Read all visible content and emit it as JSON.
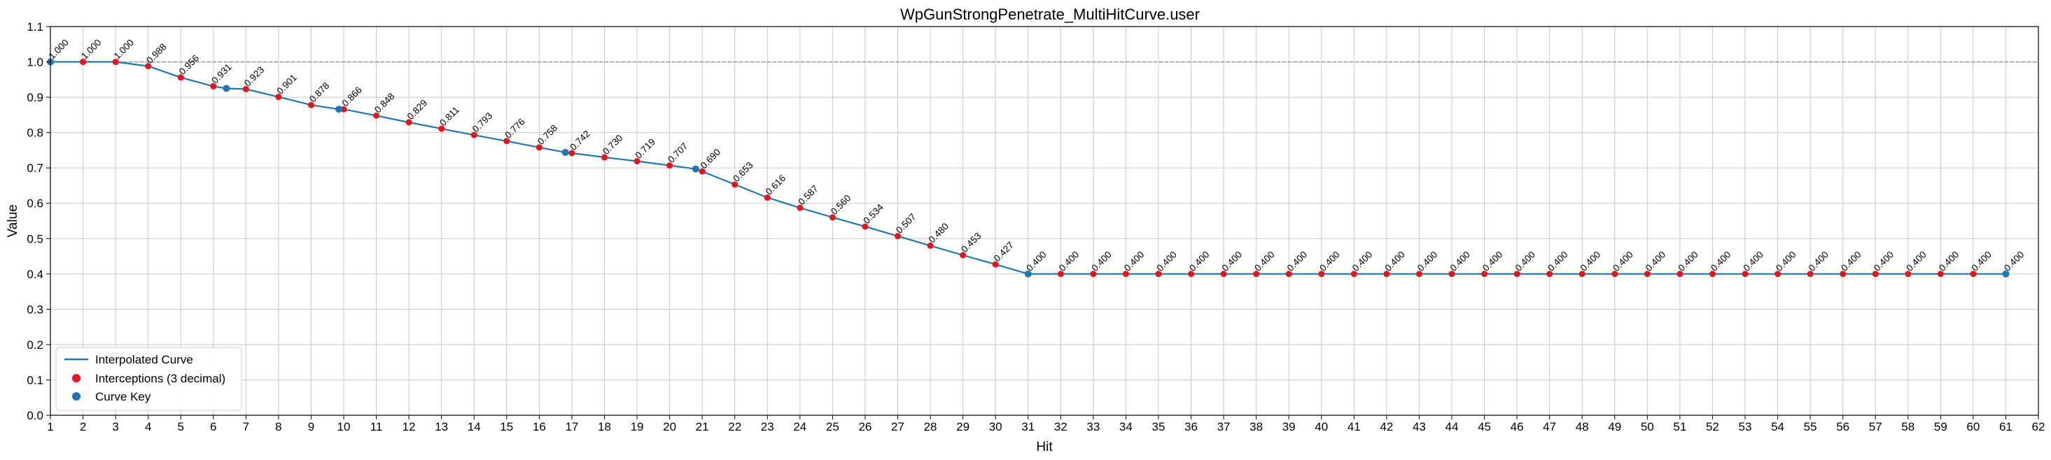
{
  "chart_data": {
    "type": "line",
    "title": "WpGunStrongPenetrate_MultiHitCurve.user",
    "xlabel": "Hit",
    "ylabel": "Value",
    "xlim": [
      1,
      62
    ],
    "ylim": [
      0.0,
      1.1
    ],
    "xticks": [
      1,
      2,
      3,
      4,
      5,
      6,
      7,
      8,
      9,
      10,
      11,
      12,
      13,
      14,
      15,
      16,
      17,
      18,
      19,
      20,
      21,
      22,
      23,
      24,
      25,
      26,
      27,
      28,
      29,
      30,
      31,
      32,
      33,
      34,
      35,
      36,
      37,
      38,
      39,
      40,
      41,
      42,
      43,
      44,
      45,
      46,
      47,
      48,
      49,
      50,
      51,
      52,
      53,
      54,
      55,
      56,
      57,
      58,
      59,
      60,
      61,
      62
    ],
    "yticks": [
      0.0,
      0.1,
      0.2,
      0.3,
      0.4,
      0.5,
      0.6,
      0.7,
      0.8,
      0.9,
      1.0,
      1.1
    ],
    "grid": true,
    "reference_line": {
      "y": 1.0,
      "style": "dashed"
    },
    "legend_position": "lower-left",
    "colors": {
      "curve": "#1f77b4",
      "interceptions": "#e8141a",
      "keys": "#1f77b4",
      "reference": "#888888",
      "grid": "#c8c8c8"
    },
    "series": [
      {
        "name": "Interpolated Curve",
        "kind": "line",
        "x": [
          1,
          2,
          3,
          4,
          5,
          6,
          6.4,
          7,
          8,
          9,
          9.85,
          10,
          11,
          12,
          13,
          14,
          15,
          16,
          16.8,
          17,
          18,
          19,
          20,
          20.8,
          21,
          22,
          23,
          24,
          25,
          26,
          27,
          28,
          29,
          30,
          31,
          32,
          33,
          34,
          35,
          36,
          37,
          38,
          39,
          40,
          41,
          42,
          43,
          44,
          45,
          46,
          47,
          48,
          49,
          50,
          51,
          52,
          53,
          54,
          55,
          56,
          57,
          58,
          59,
          60,
          61
        ],
        "y": [
          1.0,
          1.0,
          1.0,
          0.988,
          0.956,
          0.931,
          0.925,
          0.923,
          0.901,
          0.878,
          0.866,
          0.866,
          0.848,
          0.829,
          0.811,
          0.793,
          0.776,
          0.758,
          0.744,
          0.742,
          0.73,
          0.719,
          0.707,
          0.697,
          0.69,
          0.653,
          0.616,
          0.587,
          0.56,
          0.534,
          0.507,
          0.48,
          0.453,
          0.427,
          0.4,
          0.4,
          0.4,
          0.4,
          0.4,
          0.4,
          0.4,
          0.4,
          0.4,
          0.4,
          0.4,
          0.4,
          0.4,
          0.4,
          0.4,
          0.4,
          0.4,
          0.4,
          0.4,
          0.4,
          0.4,
          0.4,
          0.4,
          0.4,
          0.4,
          0.4,
          0.4,
          0.4,
          0.4,
          0.4,
          0.4
        ]
      },
      {
        "name": "Interceptions (3 decimal)",
        "kind": "scatter",
        "x": [
          2,
          3,
          4,
          5,
          6,
          7,
          8,
          9,
          10,
          11,
          12,
          13,
          14,
          15,
          16,
          17,
          18,
          19,
          20,
          21,
          22,
          23,
          24,
          25,
          26,
          27,
          28,
          29,
          30,
          32,
          33,
          34,
          35,
          36,
          37,
          38,
          39,
          40,
          41,
          42,
          43,
          44,
          45,
          46,
          47,
          48,
          49,
          50,
          51,
          52,
          53,
          54,
          55,
          56,
          57,
          58,
          59,
          60
        ],
        "y": [
          1.0,
          1.0,
          0.988,
          0.956,
          0.931,
          0.923,
          0.901,
          0.878,
          0.866,
          0.848,
          0.829,
          0.811,
          0.793,
          0.776,
          0.758,
          0.742,
          0.73,
          0.719,
          0.707,
          0.69,
          0.653,
          0.616,
          0.587,
          0.56,
          0.534,
          0.507,
          0.48,
          0.453,
          0.427,
          0.4,
          0.4,
          0.4,
          0.4,
          0.4,
          0.4,
          0.4,
          0.4,
          0.4,
          0.4,
          0.4,
          0.4,
          0.4,
          0.4,
          0.4,
          0.4,
          0.4,
          0.4,
          0.4,
          0.4,
          0.4,
          0.4,
          0.4,
          0.4,
          0.4,
          0.4,
          0.4,
          0.4,
          0.4
        ]
      },
      {
        "name": "Curve Key",
        "kind": "scatter",
        "x": [
          1,
          6.4,
          9.85,
          16.8,
          20.8,
          31,
          61
        ],
        "y": [
          1.0,
          0.925,
          0.866,
          0.744,
          0.697,
          0.4,
          0.4
        ]
      }
    ],
    "labels": [
      {
        "x": 1,
        "y": 1.0,
        "text": "1.000"
      },
      {
        "x": 2,
        "y": 1.0,
        "text": "1.000"
      },
      {
        "x": 3,
        "y": 1.0,
        "text": "1.000"
      },
      {
        "x": 4,
        "y": 0.988,
        "text": "0.988"
      },
      {
        "x": 5,
        "y": 0.956,
        "text": "0.956"
      },
      {
        "x": 6,
        "y": 0.931,
        "text": "0.931"
      },
      {
        "x": 7,
        "y": 0.923,
        "text": "0.923"
      },
      {
        "x": 8,
        "y": 0.901,
        "text": "0.901"
      },
      {
        "x": 9,
        "y": 0.878,
        "text": "0.878"
      },
      {
        "x": 10,
        "y": 0.866,
        "text": "0.866"
      },
      {
        "x": 11,
        "y": 0.848,
        "text": "0.848"
      },
      {
        "x": 12,
        "y": 0.829,
        "text": "0.829"
      },
      {
        "x": 13,
        "y": 0.811,
        "text": "0.811"
      },
      {
        "x": 14,
        "y": 0.793,
        "text": "0.793"
      },
      {
        "x": 15,
        "y": 0.776,
        "text": "0.776"
      },
      {
        "x": 16,
        "y": 0.758,
        "text": "0.758"
      },
      {
        "x": 17,
        "y": 0.742,
        "text": "0.742"
      },
      {
        "x": 18,
        "y": 0.73,
        "text": "0.730"
      },
      {
        "x": 19,
        "y": 0.719,
        "text": "0.719"
      },
      {
        "x": 20,
        "y": 0.707,
        "text": "0.707"
      },
      {
        "x": 21,
        "y": 0.69,
        "text": "0.690"
      },
      {
        "x": 22,
        "y": 0.653,
        "text": "0.653"
      },
      {
        "x": 23,
        "y": 0.616,
        "text": "0.616"
      },
      {
        "x": 24,
        "y": 0.587,
        "text": "0.587"
      },
      {
        "x": 25,
        "y": 0.56,
        "text": "0.560"
      },
      {
        "x": 26,
        "y": 0.534,
        "text": "0.534"
      },
      {
        "x": 27,
        "y": 0.507,
        "text": "0.507"
      },
      {
        "x": 28,
        "y": 0.48,
        "text": "0.480"
      },
      {
        "x": 29,
        "y": 0.453,
        "text": "0.453"
      },
      {
        "x": 30,
        "y": 0.427,
        "text": "0.427"
      },
      {
        "x": 31,
        "y": 0.4,
        "text": "0.400"
      },
      {
        "x": 32,
        "y": 0.4,
        "text": "0.400"
      },
      {
        "x": 33,
        "y": 0.4,
        "text": "0.400"
      },
      {
        "x": 34,
        "y": 0.4,
        "text": "0.400"
      },
      {
        "x": 35,
        "y": 0.4,
        "text": "0.400"
      },
      {
        "x": 36,
        "y": 0.4,
        "text": "0.400"
      },
      {
        "x": 37,
        "y": 0.4,
        "text": "0.400"
      },
      {
        "x": 38,
        "y": 0.4,
        "text": "0.400"
      },
      {
        "x": 39,
        "y": 0.4,
        "text": "0.400"
      },
      {
        "x": 40,
        "y": 0.4,
        "text": "0.400"
      },
      {
        "x": 41,
        "y": 0.4,
        "text": "0.400"
      },
      {
        "x": 42,
        "y": 0.4,
        "text": "0.400"
      },
      {
        "x": 43,
        "y": 0.4,
        "text": "0.400"
      },
      {
        "x": 44,
        "y": 0.4,
        "text": "0.400"
      },
      {
        "x": 45,
        "y": 0.4,
        "text": "0.400"
      },
      {
        "x": 46,
        "y": 0.4,
        "text": "0.400"
      },
      {
        "x": 47,
        "y": 0.4,
        "text": "0.400"
      },
      {
        "x": 48,
        "y": 0.4,
        "text": "0.400"
      },
      {
        "x": 49,
        "y": 0.4,
        "text": "0.400"
      },
      {
        "x": 50,
        "y": 0.4,
        "text": "0.400"
      },
      {
        "x": 51,
        "y": 0.4,
        "text": "0.400"
      },
      {
        "x": 52,
        "y": 0.4,
        "text": "0.400"
      },
      {
        "x": 53,
        "y": 0.4,
        "text": "0.400"
      },
      {
        "x": 54,
        "y": 0.4,
        "text": "0.400"
      },
      {
        "x": 55,
        "y": 0.4,
        "text": "0.400"
      },
      {
        "x": 56,
        "y": 0.4,
        "text": "0.400"
      },
      {
        "x": 57,
        "y": 0.4,
        "text": "0.400"
      },
      {
        "x": 58,
        "y": 0.4,
        "text": "0.400"
      },
      {
        "x": 59,
        "y": 0.4,
        "text": "0.400"
      },
      {
        "x": 60,
        "y": 0.4,
        "text": "0.400"
      },
      {
        "x": 61,
        "y": 0.4,
        "text": "0.400"
      }
    ],
    "legend": [
      {
        "label": "Interpolated Curve",
        "marker": "line"
      },
      {
        "label": "Interceptions (3 decimal)",
        "marker": "red-dot"
      },
      {
        "label": "Curve Key",
        "marker": "blue-dot"
      }
    ]
  }
}
